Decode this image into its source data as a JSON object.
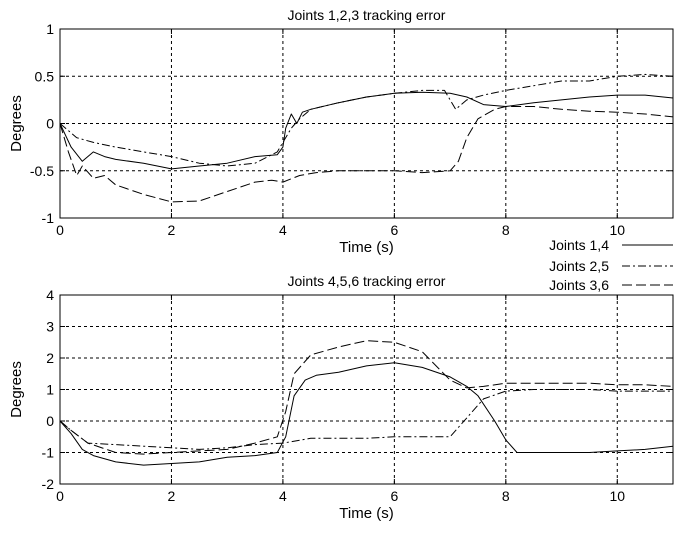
{
  "chart_data": [
    {
      "type": "line",
      "title": "Joints 1,2,3 tracking error",
      "xlabel": "Time (s)",
      "ylabel": "Degrees",
      "xlim": [
        0,
        11
      ],
      "ylim": [
        -1,
        1
      ],
      "xticks": [
        0,
        2,
        4,
        6,
        8,
        10
      ],
      "yticks": [
        -1,
        -0.5,
        0,
        0.5,
        1
      ],
      "ytick_labels": [
        "-1",
        "-0.5",
        "0",
        "0.5",
        "1"
      ],
      "grid": true,
      "series": [
        {
          "name": "Joints 1,4",
          "style": "solid",
          "x": [
            0,
            0.2,
            0.4,
            0.6,
            0.8,
            1.0,
            1.5,
            2.0,
            2.5,
            3.0,
            3.5,
            3.9,
            4.0,
            4.05,
            4.15,
            4.25,
            4.35,
            4.5,
            5.0,
            5.5,
            6.0,
            6.5,
            7.0,
            7.3,
            7.6,
            8.0,
            8.5,
            9.0,
            9.5,
            10.0,
            10.5,
            11.0
          ],
          "y": [
            0,
            -0.25,
            -0.4,
            -0.3,
            -0.35,
            -0.38,
            -0.42,
            -0.48,
            -0.45,
            -0.42,
            -0.35,
            -0.33,
            -0.25,
            -0.05,
            0.1,
            0.0,
            0.12,
            0.15,
            0.22,
            0.28,
            0.32,
            0.33,
            0.32,
            0.28,
            0.2,
            0.18,
            0.22,
            0.25,
            0.28,
            0.3,
            0.3,
            0.27
          ]
        },
        {
          "name": "Joints 2,5",
          "style": "dashdot",
          "x": [
            0,
            0.3,
            0.6,
            1.0,
            1.5,
            2.0,
            2.5,
            3.0,
            3.5,
            3.9,
            4.0,
            4.15,
            4.3,
            4.5,
            5.0,
            5.5,
            6.0,
            6.5,
            6.9,
            7.1,
            7.3,
            7.6,
            8.0,
            8.5,
            9.0,
            9.5,
            10.0,
            10.5,
            11.0
          ],
          "y": [
            0,
            -0.15,
            -0.2,
            -0.25,
            -0.3,
            -0.35,
            -0.42,
            -0.45,
            -0.42,
            -0.3,
            -0.2,
            -0.05,
            0.05,
            0.15,
            0.22,
            0.28,
            0.32,
            0.35,
            0.35,
            0.15,
            0.25,
            0.3,
            0.35,
            0.4,
            0.45,
            0.45,
            0.5,
            0.52,
            0.5
          ]
        },
        {
          "name": "Joints 3,6",
          "style": "dashed",
          "x": [
            0,
            0.15,
            0.3,
            0.4,
            0.6,
            0.8,
            1.0,
            1.5,
            2.0,
            2.5,
            3.0,
            3.5,
            3.8,
            4.0,
            4.3,
            4.6,
            5.0,
            5.5,
            6.0,
            6.5,
            7.0,
            7.15,
            7.3,
            7.5,
            7.8,
            8.0,
            8.5,
            9.0,
            9.5,
            10.0,
            10.5,
            11.0
          ],
          "y": [
            0,
            -0.3,
            -0.55,
            -0.45,
            -0.58,
            -0.55,
            -0.65,
            -0.75,
            -0.83,
            -0.82,
            -0.72,
            -0.62,
            -0.6,
            -0.62,
            -0.55,
            -0.52,
            -0.5,
            -0.5,
            -0.5,
            -0.52,
            -0.5,
            -0.4,
            -0.15,
            0.05,
            0.15,
            0.18,
            0.18,
            0.15,
            0.13,
            0.12,
            0.1,
            0.07
          ]
        }
      ]
    },
    {
      "type": "line",
      "title": "Joints 4,5,6 tracking error",
      "xlabel": "Time (s)",
      "ylabel": "Degrees",
      "xlim": [
        0,
        11
      ],
      "ylim": [
        -2,
        4
      ],
      "xticks": [
        0,
        2,
        4,
        6,
        8,
        10
      ],
      "yticks": [
        -2,
        -1,
        0,
        1,
        2,
        3,
        4
      ],
      "ytick_labels": [
        "-2",
        "-1",
        "0",
        "1",
        "2",
        "3",
        "4"
      ],
      "grid": true,
      "series": [
        {
          "name": "Joints 1,4",
          "style": "solid",
          "x": [
            0,
            0.2,
            0.4,
            0.6,
            1.0,
            1.5,
            2.0,
            2.5,
            3.0,
            3.5,
            3.9,
            4.05,
            4.2,
            4.4,
            4.6,
            5.0,
            5.5,
            6.0,
            6.5,
            7.0,
            7.3,
            7.5,
            7.8,
            8.0,
            8.2,
            8.5,
            9.0,
            9.5,
            10.0,
            10.5,
            11.0
          ],
          "y": [
            0,
            -0.4,
            -0.9,
            -1.1,
            -1.3,
            -1.4,
            -1.35,
            -1.3,
            -1.15,
            -1.1,
            -1.0,
            -0.5,
            0.8,
            1.3,
            1.45,
            1.55,
            1.75,
            1.85,
            1.7,
            1.4,
            1.1,
            0.8,
            0.0,
            -0.6,
            -1.0,
            -1.0,
            -1.0,
            -1.0,
            -0.95,
            -0.9,
            -0.8
          ]
        },
        {
          "name": "Joints 2,5",
          "style": "dashdot",
          "x": [
            0,
            0.2,
            0.5,
            1.0,
            1.5,
            2.0,
            2.5,
            3.0,
            3.5,
            4.0,
            4.5,
            5.0,
            5.5,
            6.0,
            6.5,
            7.0,
            7.3,
            7.6,
            8.0,
            8.5,
            9.0,
            9.5,
            10.0,
            10.5,
            11.0
          ],
          "y": [
            0,
            -0.3,
            -0.7,
            -0.75,
            -0.8,
            -0.85,
            -0.9,
            -0.85,
            -0.75,
            -0.7,
            -0.55,
            -0.55,
            -0.55,
            -0.5,
            -0.5,
            -0.5,
            0.1,
            0.7,
            0.95,
            1.0,
            1.0,
            1.0,
            0.95,
            0.95,
            0.95
          ]
        },
        {
          "name": "Joints 3,6",
          "style": "dashed",
          "x": [
            0,
            0.2,
            0.5,
            1.0,
            1.5,
            2.0,
            2.5,
            3.0,
            3.5,
            3.9,
            4.05,
            4.2,
            4.5,
            5.0,
            5.5,
            6.0,
            6.5,
            7.0,
            7.3,
            7.6,
            8.0,
            8.5,
            9.0,
            9.5,
            10.0,
            10.5,
            11.0
          ],
          "y": [
            0,
            -0.3,
            -0.7,
            -1.0,
            -1.05,
            -1.0,
            -0.95,
            -0.9,
            -0.7,
            -0.5,
            0.3,
            1.5,
            2.1,
            2.35,
            2.55,
            2.5,
            2.2,
            1.3,
            1.05,
            1.1,
            1.2,
            1.2,
            1.2,
            1.2,
            1.15,
            1.15,
            1.1
          ]
        }
      ]
    }
  ],
  "legend": {
    "placement": "between subplots, right",
    "items": [
      "Joints 1,4",
      "Joints 2,5",
      "Joints 3,6"
    ]
  }
}
